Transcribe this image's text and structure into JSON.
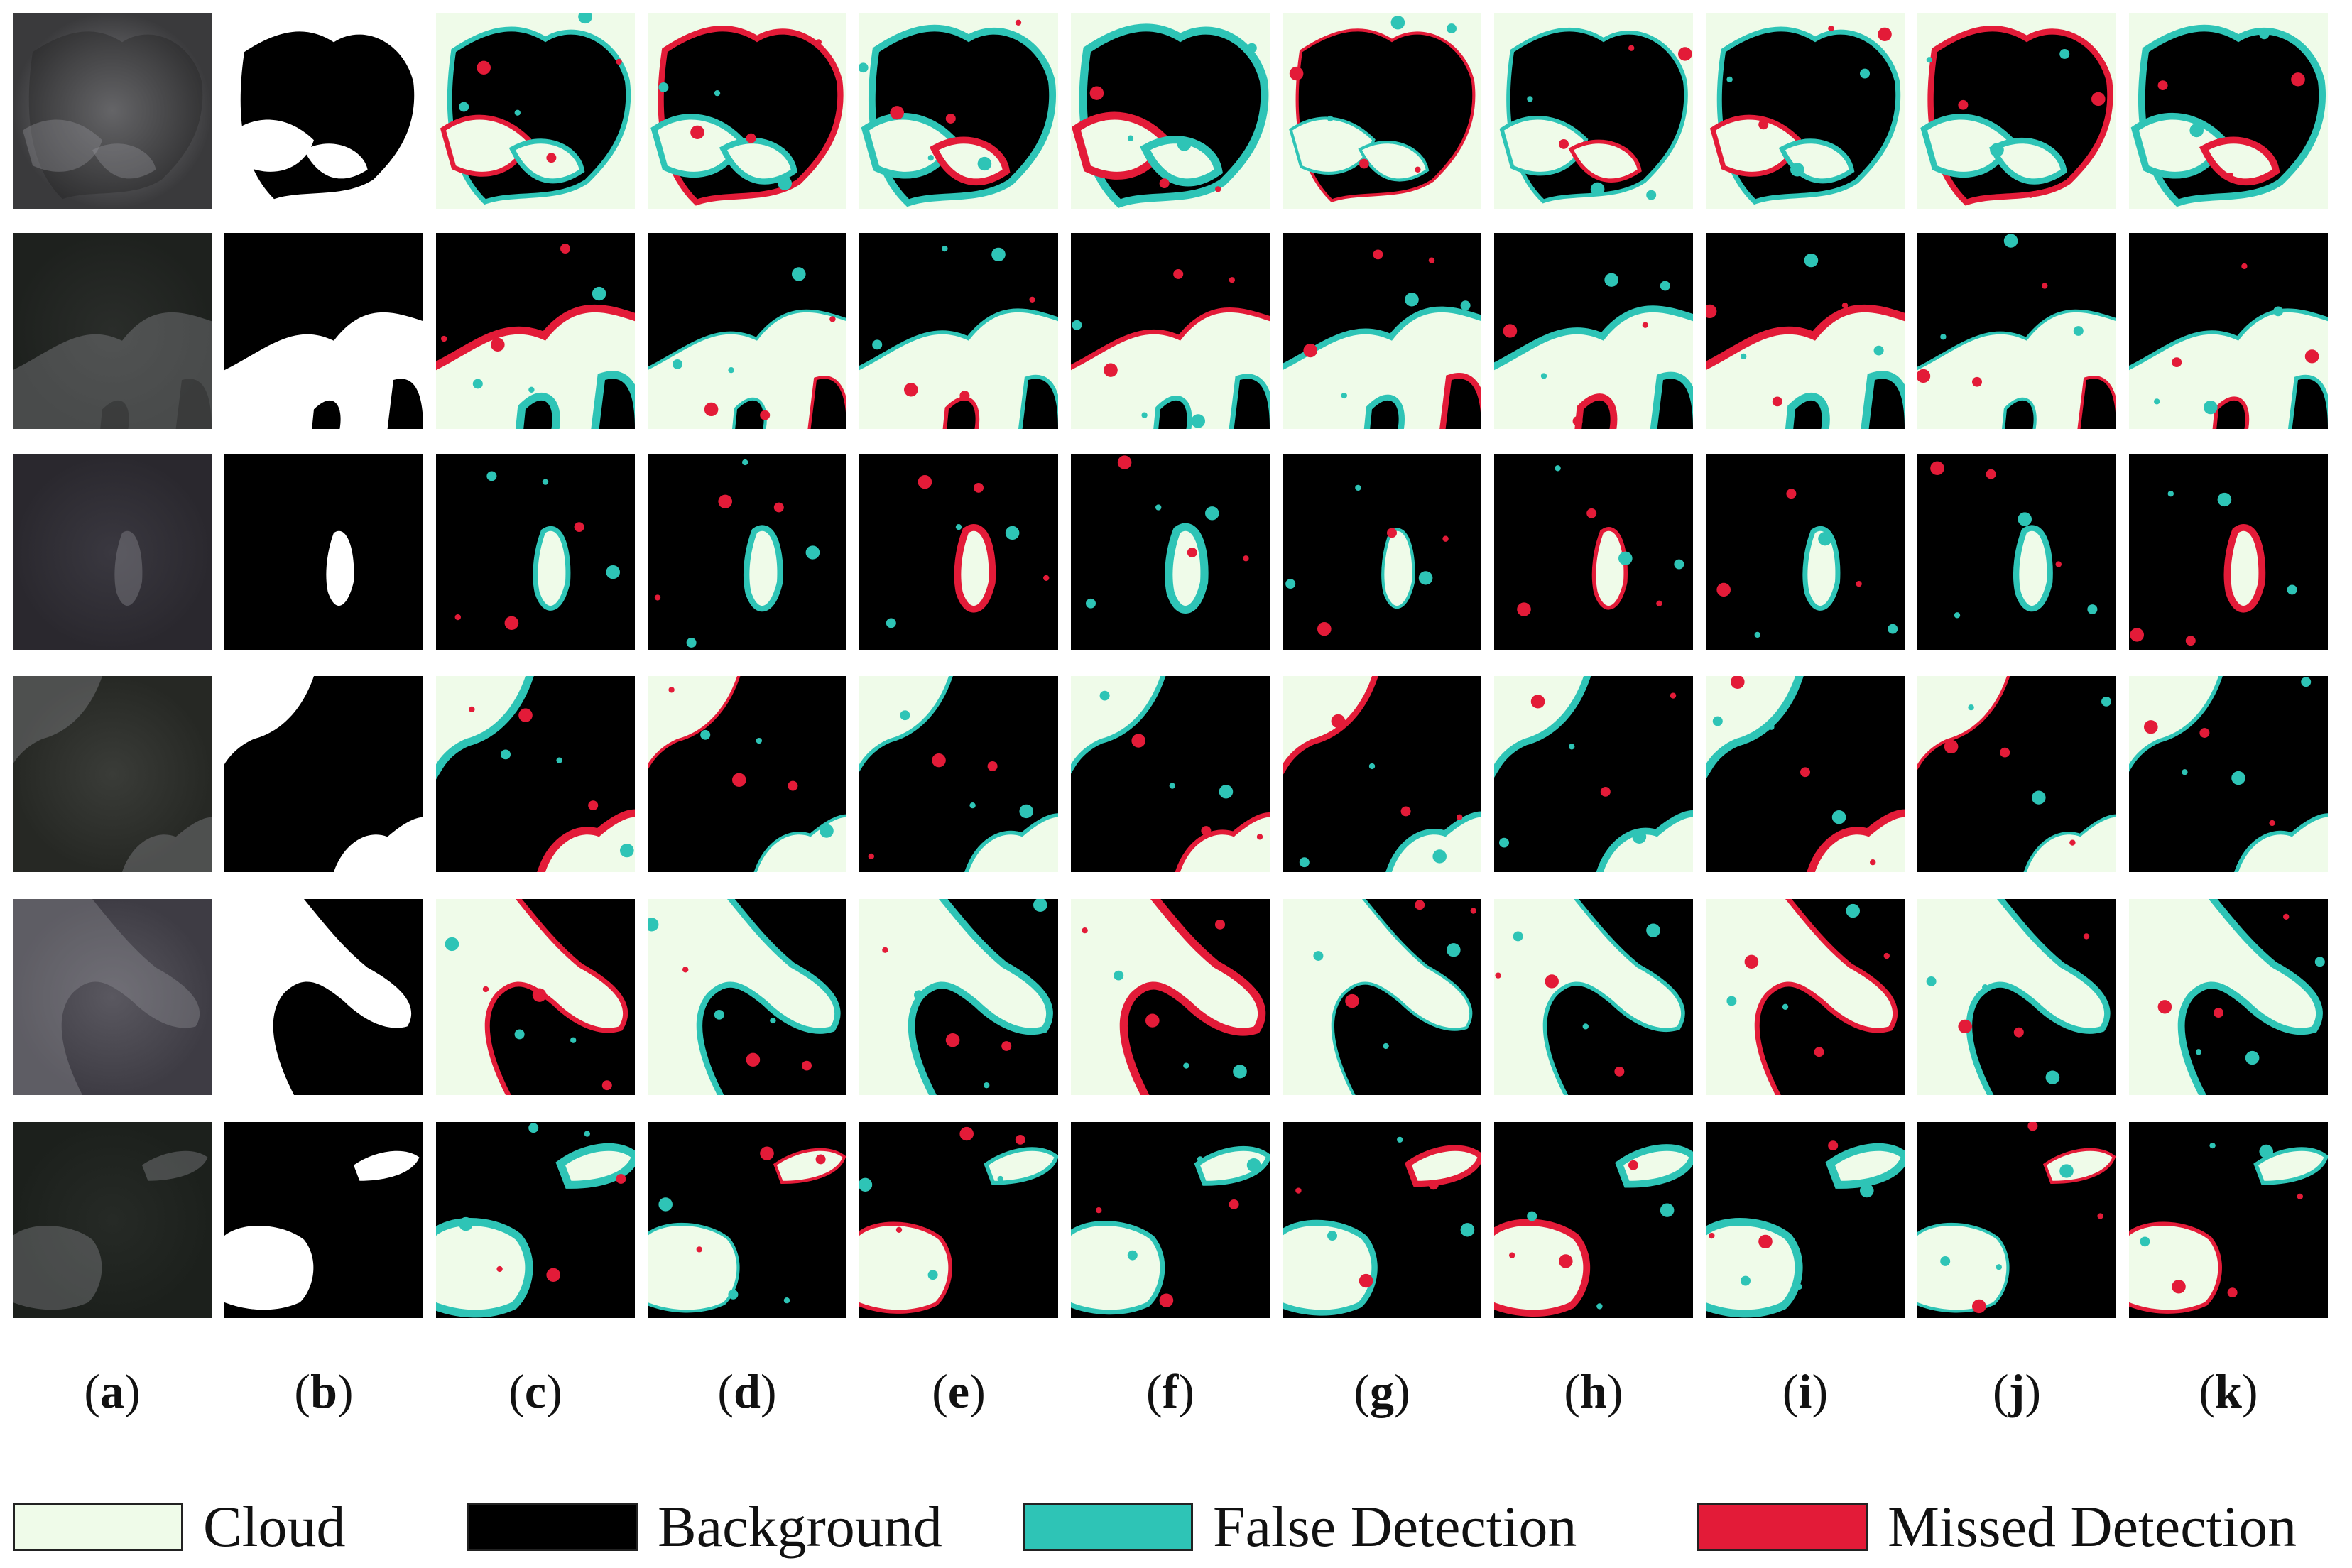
{
  "colors": {
    "cloud": "#effbe9",
    "background": "#000000",
    "false_detection": "#2ec4b6",
    "missed_detection": "#e31b38"
  },
  "columns": [
    {
      "label": "a",
      "kind": "satellite image"
    },
    {
      "label": "b",
      "kind": "ground truth"
    },
    {
      "label": "c",
      "kind": "result"
    },
    {
      "label": "d",
      "kind": "result"
    },
    {
      "label": "e",
      "kind": "result"
    },
    {
      "label": "f",
      "kind": "result"
    },
    {
      "label": "g",
      "kind": "result"
    },
    {
      "label": "h",
      "kind": "result"
    },
    {
      "label": "i",
      "kind": "result"
    },
    {
      "label": "j",
      "kind": "result"
    },
    {
      "label": "k",
      "kind": "result"
    }
  ],
  "rows": 6,
  "legend": [
    {
      "label": "Cloud",
      "color_key": "cloud"
    },
    {
      "label": "Background",
      "color_key": "background"
    },
    {
      "label": "False Detection",
      "color_key": "false_detection"
    },
    {
      "label": "Missed Detection",
      "color_key": "missed_detection"
    }
  ]
}
